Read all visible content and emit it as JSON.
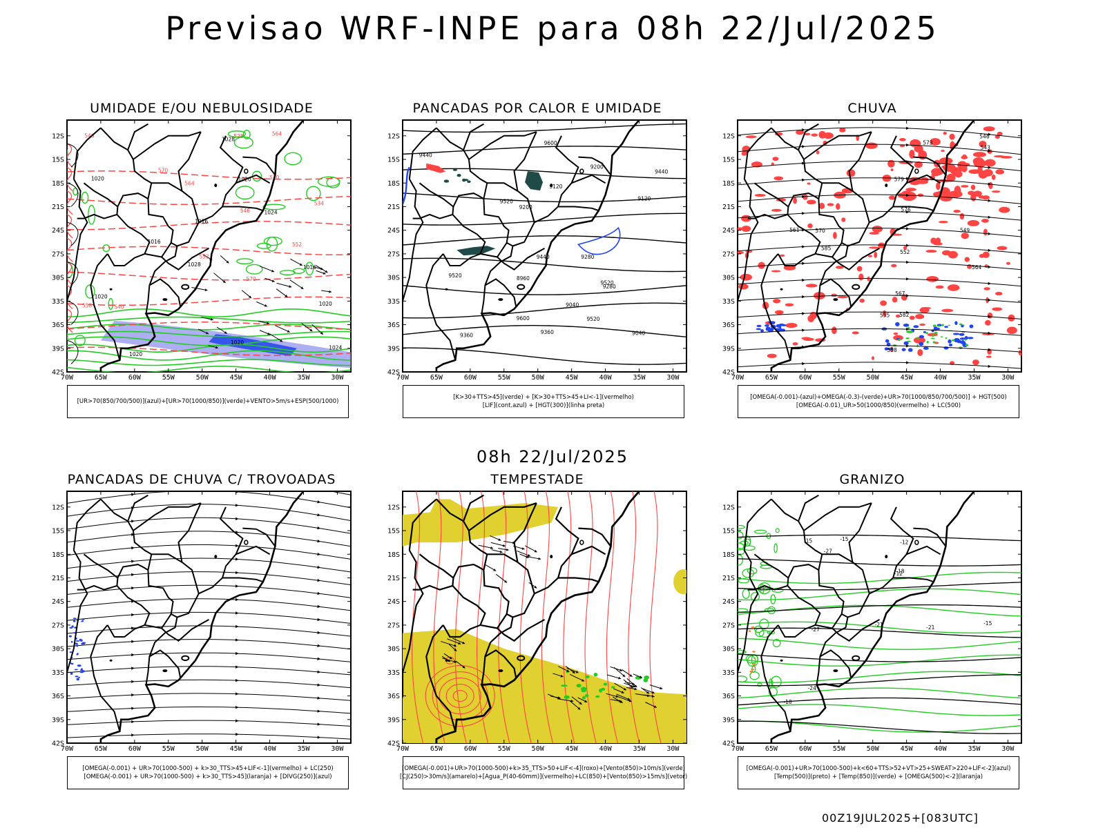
{
  "title": "Previsao WRF-INPE  para 08h 22/Jul/2025",
  "subtitle": "08h 22/Jul/2025",
  "footer": "00Z19JUL2025+[083UTC]",
  "axes": {
    "lat_ticks": [
      "12S",
      "15S",
      "18S",
      "21S",
      "24S",
      "27S",
      "30S",
      "33S",
      "36S",
      "39S",
      "42S"
    ],
    "lon_ticks": [
      "70W",
      "65W",
      "60W",
      "55W",
      "50W",
      "45W",
      "40W",
      "35W",
      "30W"
    ]
  },
  "colors": {
    "humidity_blue": "#9a9af0",
    "green": "#22cc22",
    "red": "#ff4444",
    "blue": "#2244ee",
    "yellow": "#e0d030",
    "dark_teal": "#1f4a48",
    "orange": "#ee8833"
  },
  "panels": [
    {
      "id": "umidade",
      "title": "UMIDADE E/OU NEBULOSIDADE",
      "legend": [
        "[UR>70(850/700/500)](azul)+[UR>70(1000/850)](verde)+VENTO>5m/s+ESP(500/1000)"
      ],
      "labels": [
        "1020",
        "1016",
        "1016",
        "1016",
        "1020",
        "1020",
        "1020",
        "1024",
        "1028",
        "1028",
        "1020",
        "1024",
        "1020",
        "570",
        "570",
        "570",
        "564",
        "564",
        "558",
        "552",
        "546",
        "540",
        "534",
        "528",
        "552",
        "546"
      ]
    },
    {
      "id": "pancadas-calor",
      "title": "PANCADAS POR CALOR E UMIDADE",
      "legend": [
        "[K>30+TTS>45](verde) + [K>30+TTS>45+LI<-1](vermelho)",
        "[LIF](cont.azul) + [HGT(300)](linha preta)"
      ],
      "labels": [
        "9600",
        "9600",
        "9520",
        "9520",
        "9520",
        "9520",
        "9440",
        "9440",
        "9440",
        "9360",
        "9360",
        "9280",
        "9280",
        "9200",
        "9200",
        "9120",
        "9120",
        "9040",
        "9040",
        "8960"
      ]
    },
    {
      "id": "chuva",
      "title": "CHUVA",
      "legend": [
        "[OMEGA(-0.001)-(azul)+OMEGA(-0.3)-(verde)+UR>70(1000/850/700/500)] + HGT(500)",
        "[OMEGA(-0.01)_UR>50(1000/850)(vermelho) + LC(500)"
      ],
      "labels": [
        "585",
        "582",
        "579",
        "576",
        "573",
        "570",
        "567",
        "564",
        "561",
        "558",
        "555",
        "552",
        "549",
        "546",
        "543"
      ]
    },
    {
      "id": "pancadas-trovoadas",
      "title": "PANCADAS DE CHUVA C/ TROVOADAS",
      "legend": [
        "[OMEGA(-0.001) + UR>70(1000-500) + k>30_TTS>45+LIF<-1](vermelho) + LC(250)",
        "[OMEGA(-0.001) + UR>70(1000-500) + k>30_TTS>45](laranja) + [DIVG(250)](azul)"
      ],
      "labels": []
    },
    {
      "id": "tempestade",
      "title": "TEMPESTADE",
      "legend": [
        "[OMEGA(-0.001)+UR>70(1000-500)+k>35_TTS>50+LIF<-4](roxo)+[Vento(850)>10m/s](verde)",
        "[CJ(250)>30m/s](amarelo)+[Agua_P(40-60mm)](vermelho)+LC(850)+[Vento(850)>15m/s](vetor)"
      ],
      "labels": []
    },
    {
      "id": "granizo",
      "title": "GRANIZO",
      "legend": [
        "[OMEGA(-0.001)+UR>70(1000-500)+k<60+TTS>52+VT>25+SWEAT>220+LIF<-2](azul)",
        "[Temp(500)](preto) + [Temp(850)](verde) + [OMEGA(500)<-2](laranja)"
      ],
      "labels": [
        "-12",
        "-12",
        "-15",
        "-15",
        "-15",
        "-18",
        "-18",
        "-21",
        "-21",
        "-24",
        "-27",
        "-27"
      ]
    }
  ]
}
